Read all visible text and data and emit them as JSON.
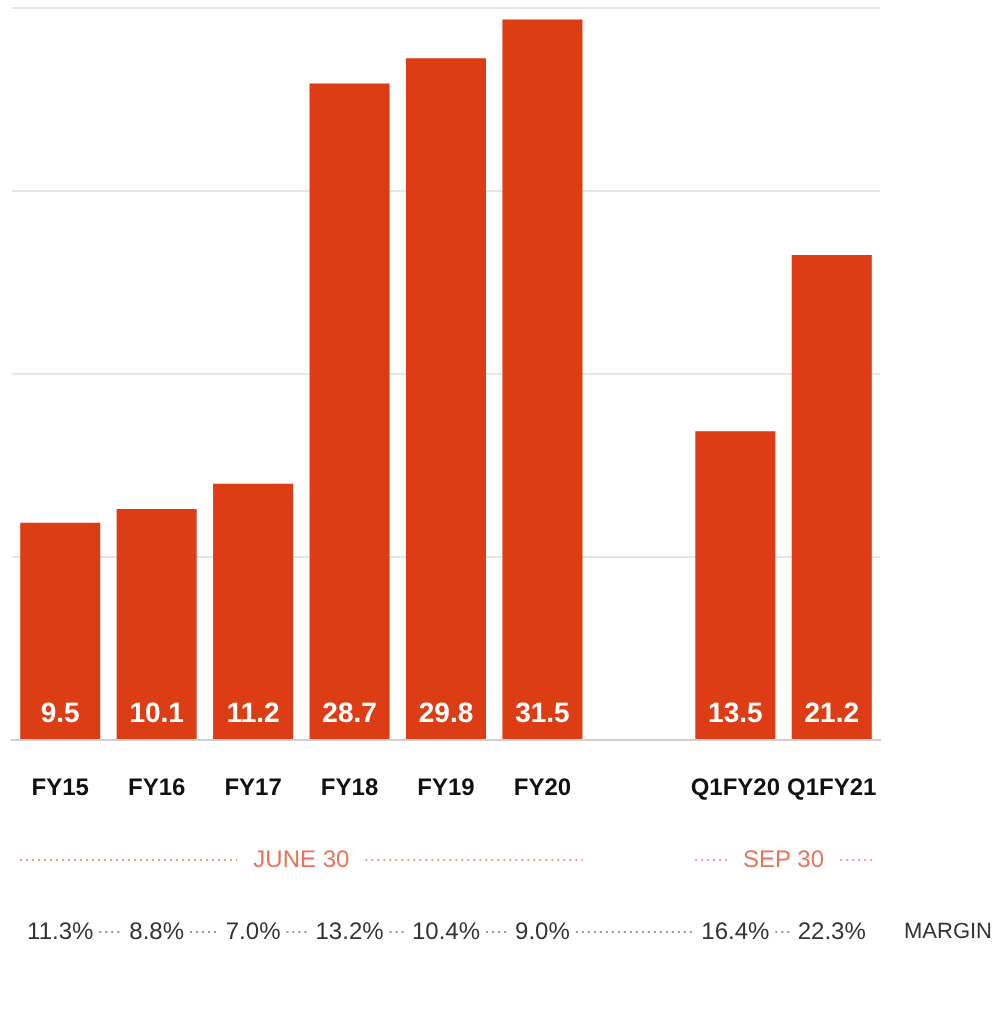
{
  "chart_data": {
    "type": "bar",
    "categories": [
      "FY15",
      "FY16",
      "FY17",
      "FY18",
      "FY19",
      "FY20",
      null,
      "Q1FY20",
      "Q1FY21"
    ],
    "values": [
      9.5,
      10.1,
      11.2,
      28.7,
      29.8,
      31.5,
      null,
      13.5,
      21.2
    ],
    "color": "#dc3d14",
    "ylim": [
      0,
      32
    ],
    "yticks": [
      {
        "value": 0,
        "label": null
      },
      {
        "value": 8,
        "label": null
      },
      {
        "value": 16,
        "label": null
      },
      {
        "value": 24,
        "label": null
      },
      {
        "value": 32,
        "label": null
      }
    ],
    "grid": "y",
    "tick_labels": "x",
    "data_labels": true,
    "annotations": [
      "JUNE 30",
      "SEP 30",
      "11.3%",
      "8.8%",
      "7.0%",
      "13.2%",
      "10.4%",
      "9.0%",
      "16.4%",
      "22.3%",
      "MARGIN"
    ]
  }
}
